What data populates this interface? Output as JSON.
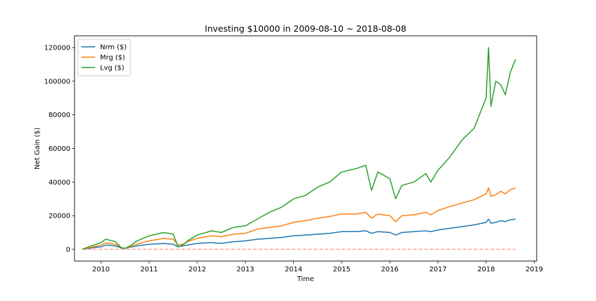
{
  "chart_data": {
    "type": "line",
    "title": "Investing $10000 in 2009-08-10 ~ 2018-08-08",
    "xlabel": "Time",
    "ylabel": "Net Gain ($)",
    "xlim": [
      2009.45,
      2019.05
    ],
    "ylim": [
      -7000,
      127000
    ],
    "x_ticks": [
      2010,
      2011,
      2012,
      2013,
      2014,
      2015,
      2016,
      2017,
      2018,
      2019
    ],
    "x_tick_labels": [
      "2010",
      "2011",
      "2012",
      "2013",
      "2014",
      "2015",
      "2016",
      "2017",
      "2018",
      "2019"
    ],
    "y_ticks": [
      0,
      20000,
      40000,
      60000,
      80000,
      100000,
      120000
    ],
    "y_tick_labels": [
      "0",
      "20000",
      "40000",
      "60000",
      "80000",
      "100000",
      "120000"
    ],
    "grid": false,
    "legend_position": "upper-left",
    "series": [
      {
        "name": "Nrm ($)",
        "color": "#1f77b4",
        "x": [
          2009.61,
          2009.8,
          2010.0,
          2010.1,
          2010.3,
          2010.42,
          2010.5,
          2010.6,
          2010.75,
          2011.0,
          2011.3,
          2011.5,
          2011.6,
          2011.7,
          2011.8,
          2012.0,
          2012.3,
          2012.5,
          2012.75,
          2013.0,
          2013.25,
          2013.5,
          2013.75,
          2014.0,
          2014.25,
          2014.5,
          2014.75,
          2015.0,
          2015.3,
          2015.5,
          2015.62,
          2015.75,
          2016.0,
          2016.12,
          2016.25,
          2016.5,
          2016.75,
          2016.85,
          2017.0,
          2017.25,
          2017.5,
          2017.75,
          2018.0,
          2018.05,
          2018.1,
          2018.2,
          2018.3,
          2018.4,
          2018.5,
          2018.61
        ],
        "values": [
          0,
          800,
          1500,
          2500,
          2000,
          800,
          600,
          1200,
          2000,
          3000,
          3500,
          3000,
          1500,
          2000,
          2500,
          3500,
          4000,
          3500,
          4500,
          5000,
          6000,
          6500,
          7000,
          8000,
          8500,
          9000,
          9500,
          10500,
          10500,
          11000,
          9500,
          10500,
          10000,
          8500,
          10000,
          10500,
          11000,
          10500,
          11500,
          12500,
          13500,
          14500,
          16000,
          18000,
          15500,
          16000,
          17000,
          16500,
          17500,
          18000
        ]
      },
      {
        "name": "Mrg ($)",
        "color": "#ff7f0e",
        "x": [
          2009.61,
          2009.8,
          2010.0,
          2010.1,
          2010.3,
          2010.42,
          2010.5,
          2010.6,
          2010.75,
          2011.0,
          2011.3,
          2011.5,
          2011.6,
          2011.7,
          2011.8,
          2012.0,
          2012.3,
          2012.5,
          2012.75,
          2013.0,
          2013.25,
          2013.5,
          2013.75,
          2014.0,
          2014.25,
          2014.5,
          2014.75,
          2015.0,
          2015.3,
          2015.5,
          2015.62,
          2015.75,
          2016.0,
          2016.12,
          2016.25,
          2016.5,
          2016.75,
          2016.85,
          2017.0,
          2017.25,
          2017.5,
          2017.75,
          2018.0,
          2018.05,
          2018.1,
          2018.2,
          2018.3,
          2018.4,
          2018.5,
          2018.61
        ],
        "values": [
          0,
          1200,
          2500,
          3800,
          3000,
          1000,
          600,
          1500,
          3000,
          5000,
          6500,
          6000,
          2500,
          3000,
          4500,
          6500,
          8000,
          7500,
          9000,
          9500,
          12000,
          13000,
          14000,
          16000,
          17000,
          18500,
          19500,
          21000,
          21000,
          22000,
          18500,
          21000,
          20000,
          16500,
          20000,
          20500,
          22000,
          20500,
          23000,
          25500,
          27500,
          29500,
          33000,
          36500,
          31500,
          32500,
          34500,
          33000,
          35500,
          36500
        ]
      },
      {
        "name": "Lvg ($)",
        "color": "#2ca02c",
        "x": [
          2009.61,
          2009.8,
          2010.0,
          2010.1,
          2010.3,
          2010.42,
          2010.5,
          2010.6,
          2010.75,
          2011.0,
          2011.3,
          2011.5,
          2011.6,
          2011.7,
          2011.8,
          2012.0,
          2012.3,
          2012.5,
          2012.75,
          2013.0,
          2013.25,
          2013.5,
          2013.75,
          2014.0,
          2014.25,
          2014.5,
          2014.75,
          2015.0,
          2015.3,
          2015.5,
          2015.62,
          2015.75,
          2016.0,
          2016.12,
          2016.25,
          2016.5,
          2016.75,
          2016.85,
          2017.0,
          2017.25,
          2017.5,
          2017.75,
          2018.0,
          2018.05,
          2018.1,
          2018.2,
          2018.3,
          2018.4,
          2018.5,
          2018.61
        ],
        "values": [
          0,
          2000,
          4000,
          6000,
          4500,
          1000,
          500,
          2000,
          5000,
          8000,
          10000,
          9000,
          1500,
          2500,
          5000,
          8500,
          11000,
          10000,
          13000,
          14000,
          18000,
          22000,
          25000,
          30000,
          32000,
          37000,
          40000,
          46000,
          48000,
          50000,
          35000,
          46000,
          42000,
          30000,
          38000,
          40000,
          45000,
          40000,
          47000,
          55000,
          65000,
          72000,
          90000,
          120000,
          85000,
          100000,
          98000,
          92000,
          105000,
          113000
        ]
      }
    ],
    "reference_line": {
      "value": 0,
      "color": "#ff7f7f",
      "style": "dashed"
    }
  }
}
